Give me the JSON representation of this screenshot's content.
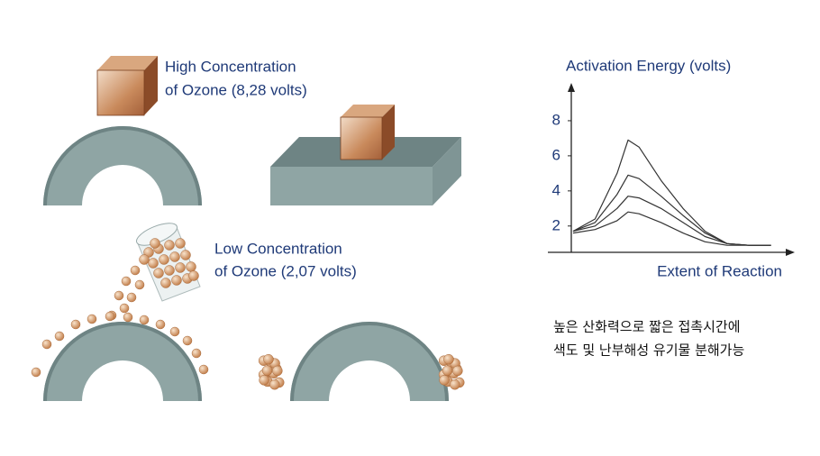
{
  "labels": {
    "high_line1": "High Concentration",
    "high_line2": "of Ozone (8,28 volts)",
    "low_line1": "Low Concentration",
    "low_line2": "of Ozone (2,07 volts)",
    "note_line1": "높은 산화력으로 짧은 접촉시간에",
    "note_line2": "색도 및 난부해성 유기물 분해가능"
  },
  "chart_data": {
    "type": "line",
    "ylabel": "Activation Energy (volts)",
    "xlabel": "Extent of Reaction",
    "x": [
      0,
      1,
      2,
      2.5,
      3,
      4,
      5,
      6,
      7,
      8,
      9
    ],
    "series": [
      {
        "color": "#333333",
        "values": [
          1.7,
          2.4,
          5.0,
          6.9,
          6.5,
          4.6,
          3.0,
          1.7,
          1.0,
          0.9,
          0.9
        ]
      },
      {
        "color": "#333333",
        "values": [
          1.7,
          2.2,
          3.8,
          4.9,
          4.7,
          3.7,
          2.6,
          1.6,
          1.0,
          0.9,
          0.9
        ]
      },
      {
        "color": "#333333",
        "values": [
          1.7,
          2.0,
          3.0,
          3.7,
          3.6,
          3.0,
          2.2,
          1.4,
          1.0,
          0.9,
          0.9
        ]
      },
      {
        "color": "#333333",
        "values": [
          1.6,
          1.8,
          2.3,
          2.8,
          2.7,
          2.2,
          1.6,
          1.1,
          0.9,
          0.9,
          0.9
        ]
      }
    ],
    "xlim": [
      0,
      10
    ],
    "ylim": [
      0.5,
      10
    ],
    "yticks": [
      2,
      4,
      6,
      8
    ]
  }
}
